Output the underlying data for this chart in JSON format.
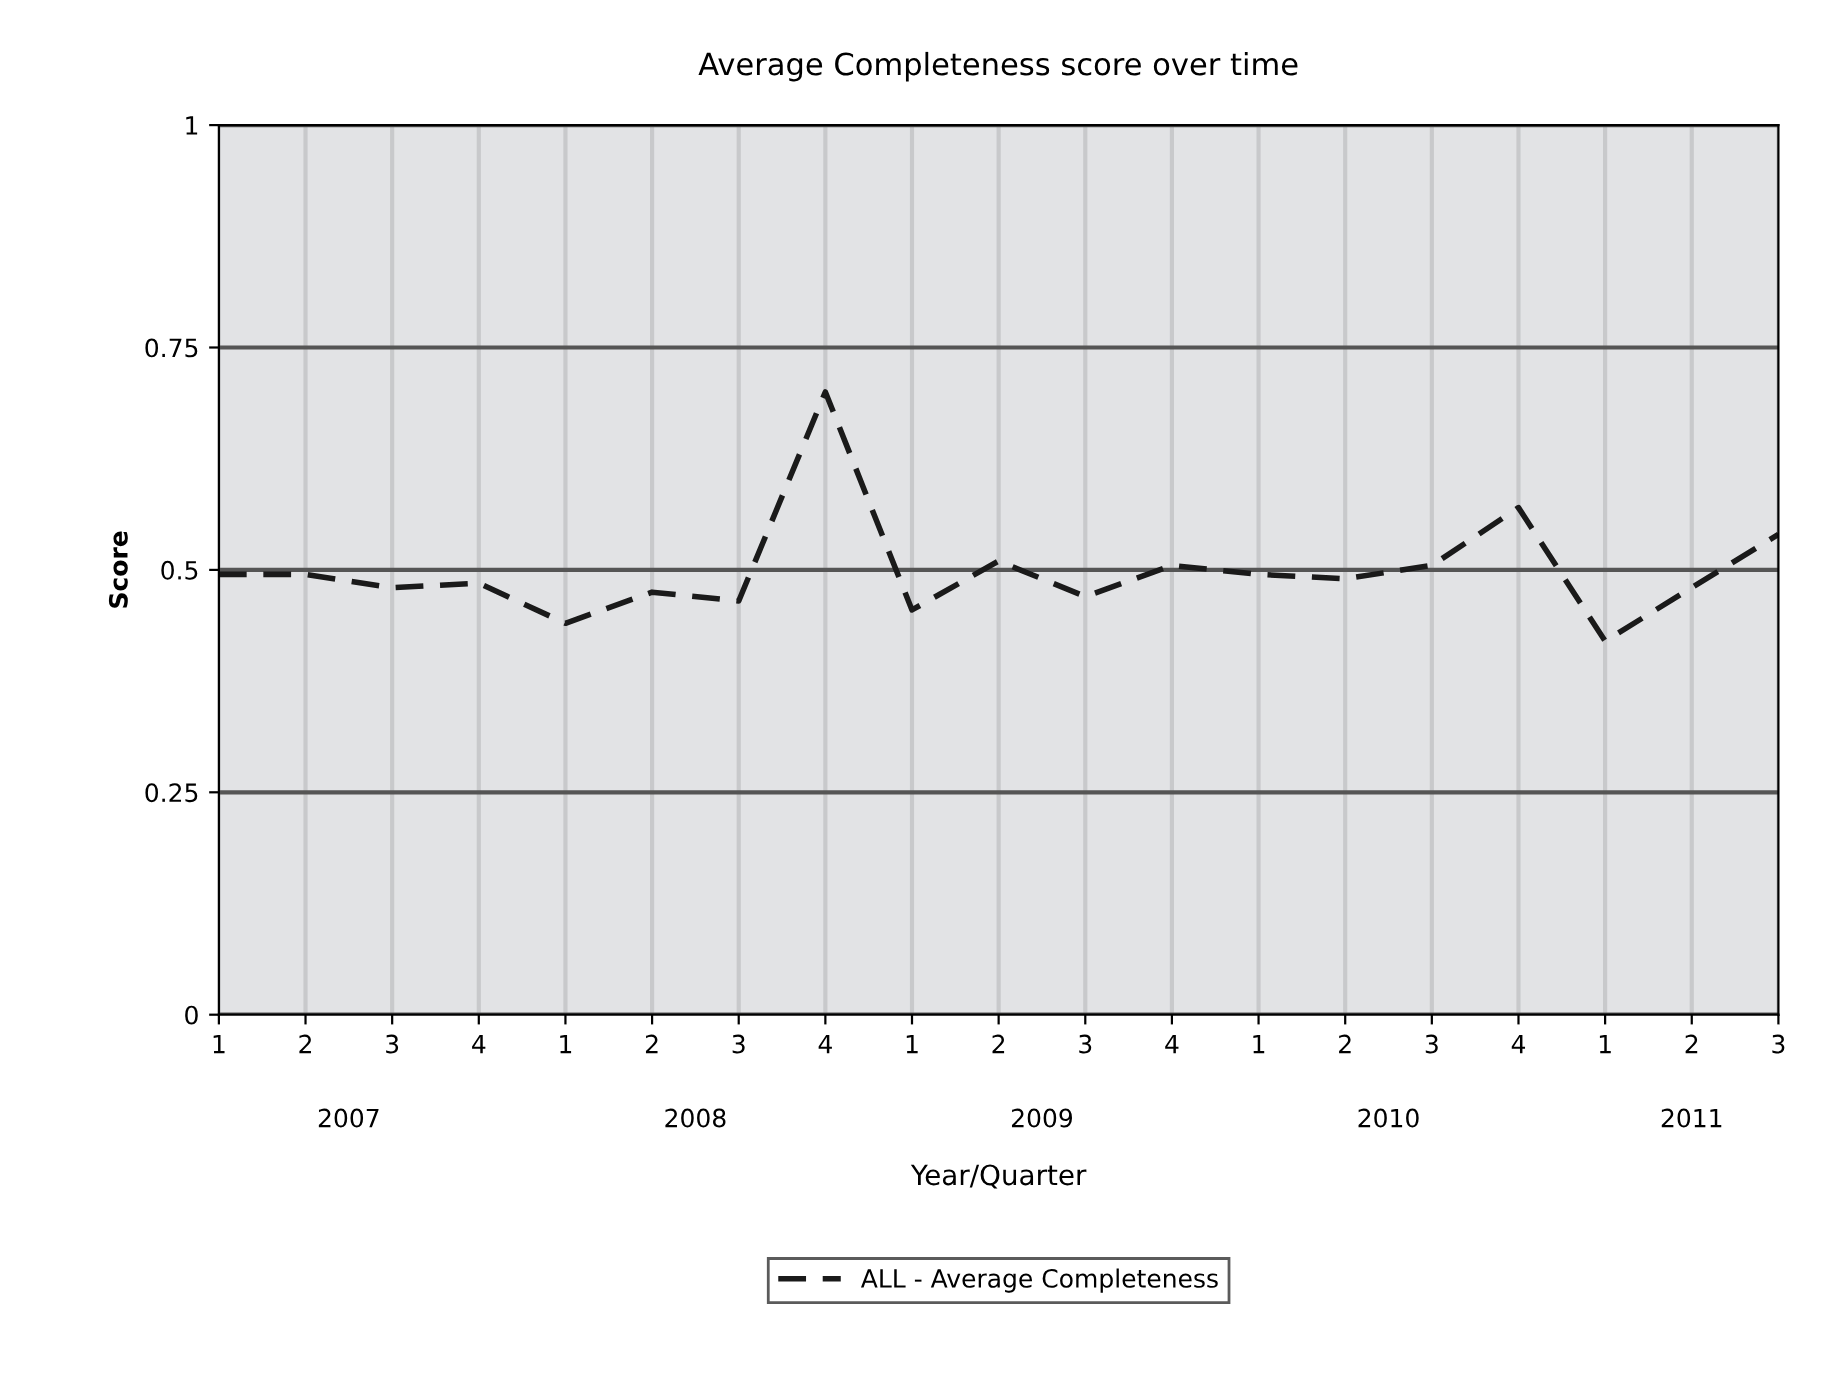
{
  "chart_data": {
    "type": "line",
    "title": "Average Completeness score over time",
    "xlabel": "Year/Quarter",
    "ylabel": "Score",
    "categories": [
      "1",
      "2",
      "3",
      "4",
      "1",
      "2",
      "3",
      "4",
      "1",
      "2",
      "3",
      "4",
      "1",
      "2",
      "3",
      "4",
      "1",
      "2",
      "3"
    ],
    "series": [
      {
        "name": "ALL - Average Completeness",
        "color": "#1a1a1a",
        "values": [
          0.495,
          0.495,
          0.48,
          0.485,
          0.44,
          0.475,
          0.465,
          0.7,
          0.455,
          0.51,
          0.47,
          0.505,
          0.495,
          0.49,
          0.505,
          0.57,
          0.42,
          0.48,
          0.54
        ]
      }
    ],
    "ylim": [
      0,
      1
    ],
    "yticks": [
      0,
      0.25,
      0.5,
      0.75,
      1
    ],
    "annotations": [
      "2007",
      "2008",
      "2009",
      "2010",
      "2011"
    ],
    "grid": true,
    "legend": "bottom",
    "line_style": "dashed",
    "marker": "none"
  }
}
